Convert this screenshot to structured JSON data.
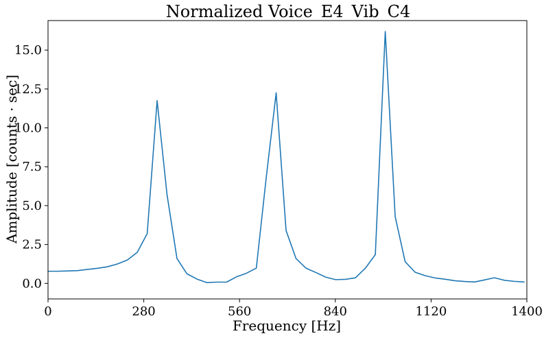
{
  "chart_data": {
    "type": "line",
    "title": "Normalized Voice_E4_Vib_C4",
    "xlabel": "Frequency [Hz]",
    "ylabel": "Amplitude [counts · sec]",
    "xlim": [
      0,
      1400
    ],
    "ylim": [
      -1.0,
      16.9
    ],
    "xticks": [
      0,
      280,
      560,
      840,
      1120,
      1400
    ],
    "xtick_labels": [
      "0",
      "280",
      "560",
      "840",
      "1120",
      "1400"
    ],
    "yticks": [
      0.0,
      2.5,
      5.0,
      7.5,
      10.0,
      12.5,
      15.0
    ],
    "ytick_labels": [
      "0.0",
      "2.5",
      "5.0",
      "7.5",
      "10.0",
      "12.5",
      "15.0"
    ],
    "grid": false,
    "series": [
      {
        "color": "#1f77b4",
        "x": [
          0,
          29,
          58,
          87,
          116,
          145,
          174,
          203,
          232,
          261,
          290,
          319,
          348,
          377,
          406,
          435,
          464,
          493,
          522,
          551,
          580,
          609,
          638,
          667,
          696,
          725,
          754,
          783,
          812,
          841,
          870,
          899,
          928,
          957,
          986,
          1015,
          1044,
          1073,
          1102,
          1131,
          1160,
          1189,
          1218,
          1247,
          1276,
          1305,
          1334,
          1363,
          1392
        ],
        "y": [
          0.78,
          0.78,
          0.8,
          0.82,
          0.9,
          0.97,
          1.07,
          1.25,
          1.5,
          2.0,
          3.2,
          11.75,
          5.7,
          1.6,
          0.62,
          0.28,
          0.05,
          0.08,
          0.08,
          0.42,
          0.65,
          0.98,
          6.8,
          12.25,
          3.4,
          1.6,
          0.98,
          0.7,
          0.4,
          0.24,
          0.26,
          0.36,
          0.98,
          1.85,
          16.2,
          4.3,
          1.4,
          0.72,
          0.5,
          0.35,
          0.27,
          0.17,
          0.12,
          0.09,
          0.22,
          0.36,
          0.2,
          0.13,
          0.09
        ]
      }
    ]
  }
}
